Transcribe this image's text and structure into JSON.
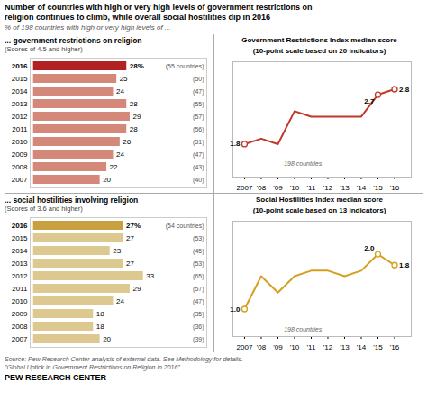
{
  "title": "Number of countries with high or very high levels of government  restrictions on\nreligion continues to climb, while overall social hostilities dip in 2016",
  "subtitle": "% of 198 countries with high or very high levels of ...",
  "source": "Source: Pew Research Center analysis of external data. See Methodology for details.\n\"Global Uptick in Government Restrictions on Religion in 2016\"",
  "credit": "PEW RESEARCH CENTER",
  "chart_data": [
    {
      "type": "bar",
      "orientation": "horizontal",
      "title": "... government restrictions on religion",
      "subtitle": "(Scores of 4.5 and higher)",
      "categories": [
        2016,
        2015,
        2014,
        2013,
        2012,
        2011,
        2010,
        2009,
        2008,
        2007
      ],
      "values": [
        28,
        25,
        24,
        28,
        29,
        28,
        26,
        24,
        22,
        20
      ],
      "value_labels": [
        "28%",
        "25",
        "24",
        "28",
        "29",
        "28",
        "26",
        "24",
        "22",
        "20"
      ],
      "data_labels": true,
      "counts": [
        "(55 countries)",
        "(50)",
        "(47)",
        "(55)",
        "(57)",
        "(56)",
        "(51)",
        "(47)",
        "(43)",
        "(40)"
      ],
      "colors": [
        "#b22222",
        "#d4887a",
        "#d4887a",
        "#d4887a",
        "#d4887a",
        "#d4887a",
        "#d4887a",
        "#d4887a",
        "#d4887a",
        "#d4887a"
      ],
      "xlim": [
        -1,
        52
      ],
      "xticks": [],
      "tick_labels": "y"
    },
    {
      "type": "line",
      "title": "Government Restrictions Index median score",
      "subtitle": "(10-point scale based on 20 indicators)",
      "x": [
        2007,
        2008,
        2009,
        2010,
        2011,
        2012,
        2013,
        2014,
        2015,
        2016
      ],
      "values": [
        1.8,
        1.9,
        1.8,
        2.4,
        2.3,
        2.3,
        2.3,
        2.3,
        2.7,
        2.8
      ],
      "color": "#c0392b",
      "marker": "circle",
      "xlim": [
        2006.3,
        2017.0
      ],
      "xticks": [
        2007,
        {
          "value": 2008,
          "label": "'08"
        },
        {
          "value": 2009,
          "label": "'09"
        },
        {
          "value": 2010,
          "label": "'10"
        },
        {
          "value": 2011,
          "label": "'11"
        },
        {
          "value": 2012,
          "label": "'12"
        },
        {
          "value": 2013,
          "label": "'13"
        },
        {
          "value": 2014,
          "label": "'14"
        },
        {
          "value": 2015,
          "label": "'15"
        },
        {
          "value": 2016,
          "label": "'16"
        }
      ],
      "ylim": [
        1.2,
        3.3
      ],
      "yticks": [],
      "tick_labels": "x",
      "point_labels": [
        {
          "x": 2007,
          "y": 1.8,
          "label": "1.8"
        },
        {
          "x": 2015,
          "y": 2.7,
          "label": "2.7"
        },
        {
          "x": 2016,
          "y": 2.8,
          "label": "2.8"
        }
      ],
      "annotations": [
        {
          "x": 2010.5,
          "y": 1.45,
          "text": "198 countries"
        }
      ]
    },
    {
      "type": "bar",
      "orientation": "horizontal",
      "title": "... social hostilities involving religion",
      "subtitle": "(Scores of 3.6 and higher)",
      "categories": [
        2016,
        2015,
        2014,
        2013,
        2012,
        2011,
        2010,
        2009,
        2008,
        2007
      ],
      "values": [
        27,
        27,
        23,
        27,
        33,
        29,
        24,
        18,
        18,
        20
      ],
      "value_labels": [
        "27%",
        "27",
        "23",
        "27",
        "33",
        "29",
        "24",
        "18",
        "18",
        "20"
      ],
      "data_labels": true,
      "counts": [
        "(54 countries)",
        "(53)",
        "(45)",
        "(53)",
        "(65)",
        "(57)",
        "(47)",
        "(35)",
        "(36)",
        "(39)"
      ],
      "colors": [
        "#c8a040",
        "#ddc990",
        "#ddc990",
        "#ddc990",
        "#ddc990",
        "#ddc990",
        "#ddc990",
        "#ddc990",
        "#ddc990",
        "#ddc990"
      ],
      "xlim": [
        -1,
        52
      ],
      "xticks": [],
      "tick_labels": "y"
    },
    {
      "type": "line",
      "title": "Social Hostilities Index median score",
      "subtitle": "(10-point scale based on 13 indicators)",
      "x": [
        2007,
        2008,
        2009,
        2010,
        2011,
        2012,
        2013,
        2014,
        2015,
        2016
      ],
      "values": [
        1.0,
        1.6,
        1.3,
        1.6,
        1.7,
        1.7,
        1.6,
        1.7,
        2.0,
        1.8
      ],
      "color": "#d4a020",
      "marker": "circle",
      "xlim": [
        2006.3,
        2017.0
      ],
      "xticks": [
        2007,
        {
          "value": 2008,
          "label": "'08"
        },
        {
          "value": 2009,
          "label": "'09"
        },
        {
          "value": 2010,
          "label": "'10"
        },
        {
          "value": 2011,
          "label": "'11"
        },
        {
          "value": 2012,
          "label": "'12"
        },
        {
          "value": 2013,
          "label": "'13"
        },
        {
          "value": 2014,
          "label": "'14"
        },
        {
          "value": 2015,
          "label": "'15"
        },
        {
          "value": 2016,
          "label": "'16"
        }
      ],
      "ylim": [
        0.5,
        2.6
      ],
      "yticks": [],
      "tick_labels": "x",
      "point_labels": [
        {
          "x": 2007,
          "y": 1.0,
          "label": "1.0"
        },
        {
          "x": 2015,
          "y": 2.0,
          "label": "2.0"
        },
        {
          "x": 2016,
          "y": 1.8,
          "label": "1.8"
        }
      ],
      "annotations": [
        {
          "x": 2010.5,
          "y": 0.62,
          "text": "198 countries"
        }
      ]
    }
  ]
}
